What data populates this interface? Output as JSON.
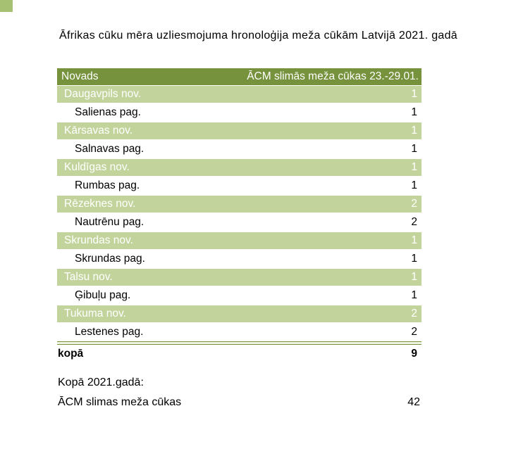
{
  "title": "Āfrikas cūku mēra uzliesmojuma hronoloģija meža cūkām Latvijā 2021. gadā",
  "table": {
    "header": {
      "novads": "Novads",
      "cases": "ĀCM slimās meža cūkas 23.-29.01."
    },
    "rows": [
      {
        "label": "Daugavpils nov.",
        "value": "1",
        "level": "nov"
      },
      {
        "label": "Salienas pag.",
        "value": "1",
        "level": "pag"
      },
      {
        "label": "Kārsavas nov.",
        "value": "1",
        "level": "nov"
      },
      {
        "label": "Salnavas pag.",
        "value": "1",
        "level": "pag"
      },
      {
        "label": "Kuldīgas nov.",
        "value": "1",
        "level": "nov"
      },
      {
        "label": "Rumbas pag.",
        "value": "1",
        "level": "pag"
      },
      {
        "label": "Rēzeknes nov.",
        "value": "2",
        "level": "nov"
      },
      {
        "label": "Nautrēnu pag.",
        "value": "2",
        "level": "pag"
      },
      {
        "label": "Skrundas nov.",
        "value": "1",
        "level": "nov"
      },
      {
        "label": "Skrundas pag.",
        "value": "1",
        "level": "pag"
      },
      {
        "label": "Talsu nov.",
        "value": "1",
        "level": "nov"
      },
      {
        "label": "Ģibuļu pag.",
        "value": "1",
        "level": "pag"
      },
      {
        "label": "Tukuma nov.",
        "value": "2",
        "level": "nov"
      },
      {
        "label": "Lestenes pag.",
        "value": "2",
        "level": "pag"
      }
    ],
    "total": {
      "label": "kopā",
      "value": "9"
    }
  },
  "summary": {
    "heading": "Kopā 2021.gadā:",
    "label": "ĀCM slimas meža cūkas",
    "value": "42"
  },
  "colors": {
    "header_green": "#76923C",
    "row_green": "#C2D49C",
    "rule_green": "#76923C",
    "corner_square_green": "#A6C172"
  }
}
